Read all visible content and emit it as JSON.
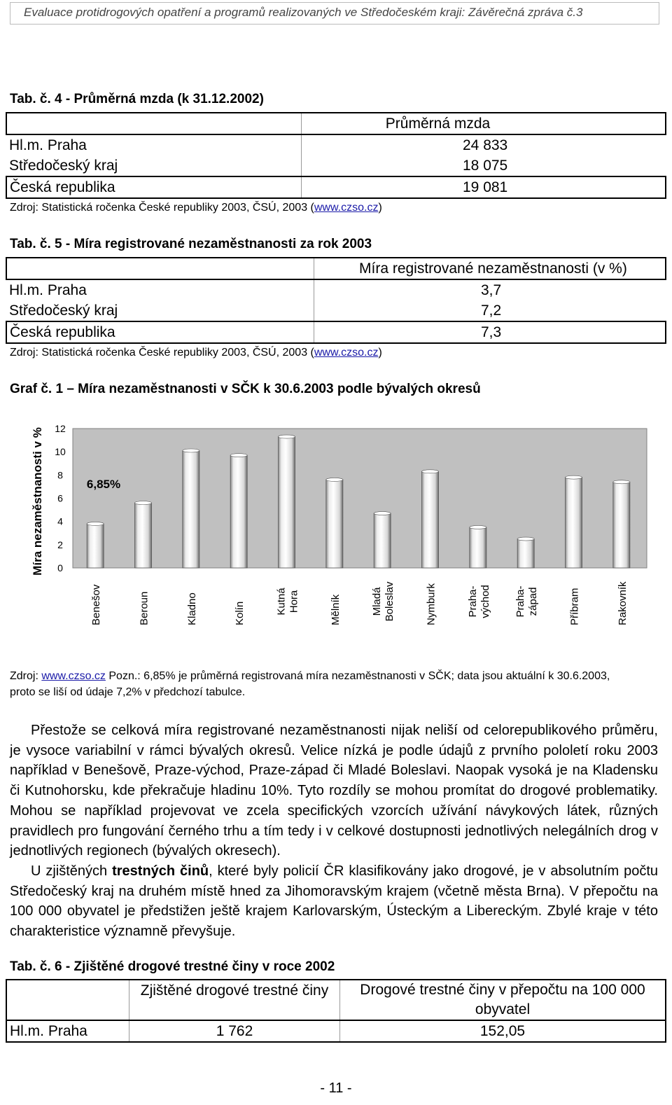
{
  "header": {
    "title": "Evaluace protidrogových opatření a programů realizovaných ve Středočeském kraji:  Závěrečná zpráva č.3"
  },
  "tab4": {
    "title": "Tab. č. 4 -   Průměrná mzda (k 31.12.2002)",
    "col_header": "Průměrná mzda",
    "rows": [
      {
        "label": "Hl.m. Praha",
        "value": "24 833"
      },
      {
        "label": "Středočeský kraj",
        "value": "18 075"
      },
      {
        "label": "Česká republika",
        "value": "19 081"
      }
    ],
    "source_prefix": "Zdroj: Statistická ročenka České republiky 2003, ČSÚ, 2003 (",
    "source_link": "www.czso.cz",
    "source_suffix": ")"
  },
  "tab5": {
    "title": "Tab. č. 5 -  Míra registrované nezaměstnanosti za rok 2003",
    "col_header": "Míra registrované nezaměstnanosti (v %)",
    "rows": [
      {
        "label": "Hl.m. Praha",
        "value": "3,7"
      },
      {
        "label": "Středočeský kraj",
        "value": "7,2"
      },
      {
        "label": "Česká republika",
        "value": "7,3"
      }
    ],
    "source_prefix": "Zdroj: Statistická ročenka České republiky 2003, ČSÚ, 2003 (",
    "source_link": "www.czso.cz",
    "source_suffix": ")"
  },
  "graf": {
    "title": "Graf č. 1 – Míra nezaměstnanosti v SČK k 30.6.2003 podle bývalých okresů",
    "note_prefix": "Zdroj: ",
    "note_link": "www.czso.cz",
    "note_text": " Pozn.: 6,85% je průměrná registrovaná míra nezaměstnanosti v SČK; data jsou aktuální k 30.6.2003,",
    "note_line2": "proto se liší od údaje 7,2%  v předchozí tabulce."
  },
  "chart_data": {
    "type": "bar",
    "title": "",
    "xlabel": "",
    "ylabel": "Míra nezaměstnanosti v %",
    "ylim": [
      0,
      12
    ],
    "yticks": [
      "0",
      "2",
      "4",
      "6",
      "8",
      "10",
      "12"
    ],
    "categories": [
      [
        "Benešov"
      ],
      [
        "Beroun"
      ],
      [
        "Kladno"
      ],
      [
        "Kolín"
      ],
      [
        "Kutná",
        "Hora"
      ],
      [
        "Mělník"
      ],
      [
        "Mladá",
        "Boleslav"
      ],
      [
        "Nymburk"
      ],
      [
        "Praha-",
        "východ"
      ],
      [
        "Praha-",
        "západ"
      ],
      [
        "Příbram"
      ],
      [
        "Rakovník"
      ]
    ],
    "values": [
      3.8,
      5.6,
      10.1,
      9.7,
      11.3,
      7.6,
      4.7,
      8.3,
      3.5,
      2.5,
      7.8,
      7.4
    ],
    "annotation": "6,85%",
    "grid": false,
    "bar_color": "#ffffff",
    "plot_bg": "#c0c0c0",
    "chart_bg": "#ffffff"
  },
  "body_text": {
    "p1": "Přestože se celková míra registrované nezaměstnanosti nijak neliší od celorepublikového průměru, je vysoce variabilní v rámci bývalých okresů. Velice nízká je podle údajů z prvního pololetí roku 2003 například v Benešově, Praze-východ, Praze-západ či Mladé Boleslavi. Naopak vysoká je na Kladensku či Kutnohorsku, kde překračuje hladinu 10%. Tyto rozdíly se mohou promítat do drogové problematiky. Mohou se například projevovat ve zcela specifických vzorcích užívání návykových látek, různých pravidlech pro fungování černého trhu a tím tedy i v celkové dostupnosti jednotlivých nelegálních drog v jednotlivých regionech (bývalých okresech).",
    "p2_pre": "U zjištěných ",
    "p2_bold": "trestných činů",
    "p2_post": ", které byly policií ČR klasifikovány jako drogové,  je v absolutním počtu Středočeský kraj na druhém místě hned za Jihomoravským krajem (včetně města Brna). V přepočtu na 100 000 obyvatel je předstižen ještě krajem Karlovarským, Ústeckým a Libereckým. Zbylé kraje v této charakteristice významně převyšuje."
  },
  "tab6": {
    "title": "Tab. č. 6 - Zjištěné drogové trestné činy v roce 2002",
    "col1": "Zjištěné drogové trestné činy",
    "col2": "Drogové trestné činy v přepočtu na 100 000 obyvatel",
    "rows": [
      {
        "label": "Hl.m. Praha",
        "v1": "1 762",
        "v2": "152,05"
      }
    ]
  },
  "page_number": "- 11 -"
}
